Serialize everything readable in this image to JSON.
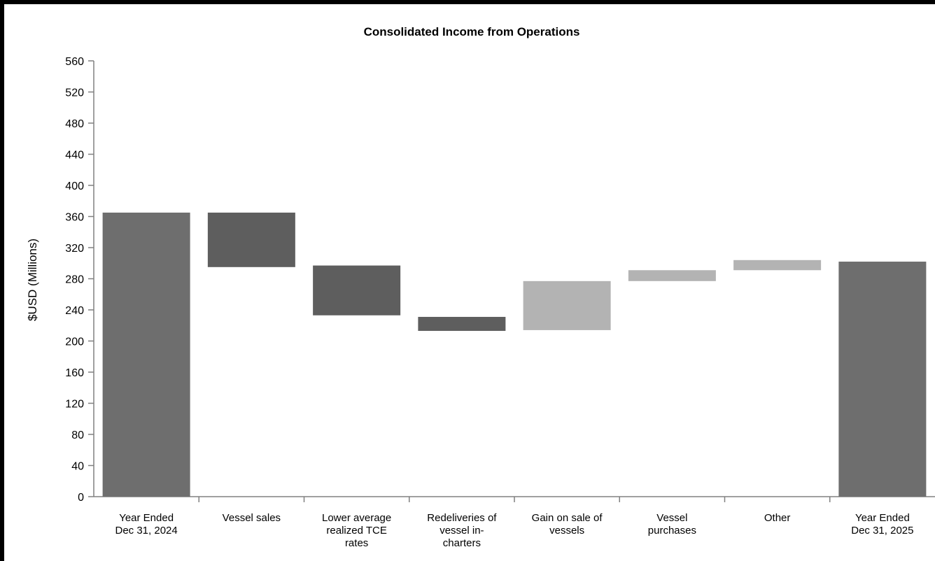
{
  "chart_data": {
    "type": "bar",
    "subtype": "waterfall",
    "title": "Consolidated Income from  Operations",
    "xlabel": "",
    "ylabel": "$USD (Millions)",
    "ylim": [
      0,
      560
    ],
    "yticks": [
      0,
      40,
      80,
      120,
      160,
      200,
      240,
      280,
      320,
      360,
      400,
      440,
      480,
      520,
      560
    ],
    "grid": false,
    "categories": [
      [
        "Year Ended",
        "Dec 31, 2024"
      ],
      [
        "Vessel sales"
      ],
      [
        "Lower average",
        "realized TCE",
        "rates"
      ],
      [
        "Redeliveries of",
        "vessel in-",
        "charters"
      ],
      [
        "Gain on sale of",
        "vessels"
      ],
      [
        "Vessel",
        "purchases"
      ],
      [
        "Other"
      ],
      [
        "Year Ended",
        "Dec 31, 2025"
      ]
    ],
    "bars": [
      {
        "base": 0,
        "top": 365,
        "kind": "total"
      },
      {
        "base": 295,
        "top": 365,
        "kind": "decrease"
      },
      {
        "base": 233,
        "top": 297,
        "kind": "decrease"
      },
      {
        "base": 213,
        "top": 231,
        "kind": "decrease"
      },
      {
        "base": 214,
        "top": 277,
        "kind": "increase"
      },
      {
        "base": 277,
        "top": 291,
        "kind": "increase"
      },
      {
        "base": 291,
        "top": 304,
        "kind": "increase"
      },
      {
        "base": 0,
        "top": 302,
        "kind": "total"
      }
    ],
    "colors": {
      "total": "#6e6e6e",
      "decrease": "#5e5e5e",
      "increase": "#b3b3b3",
      "axis": "#808080"
    }
  }
}
